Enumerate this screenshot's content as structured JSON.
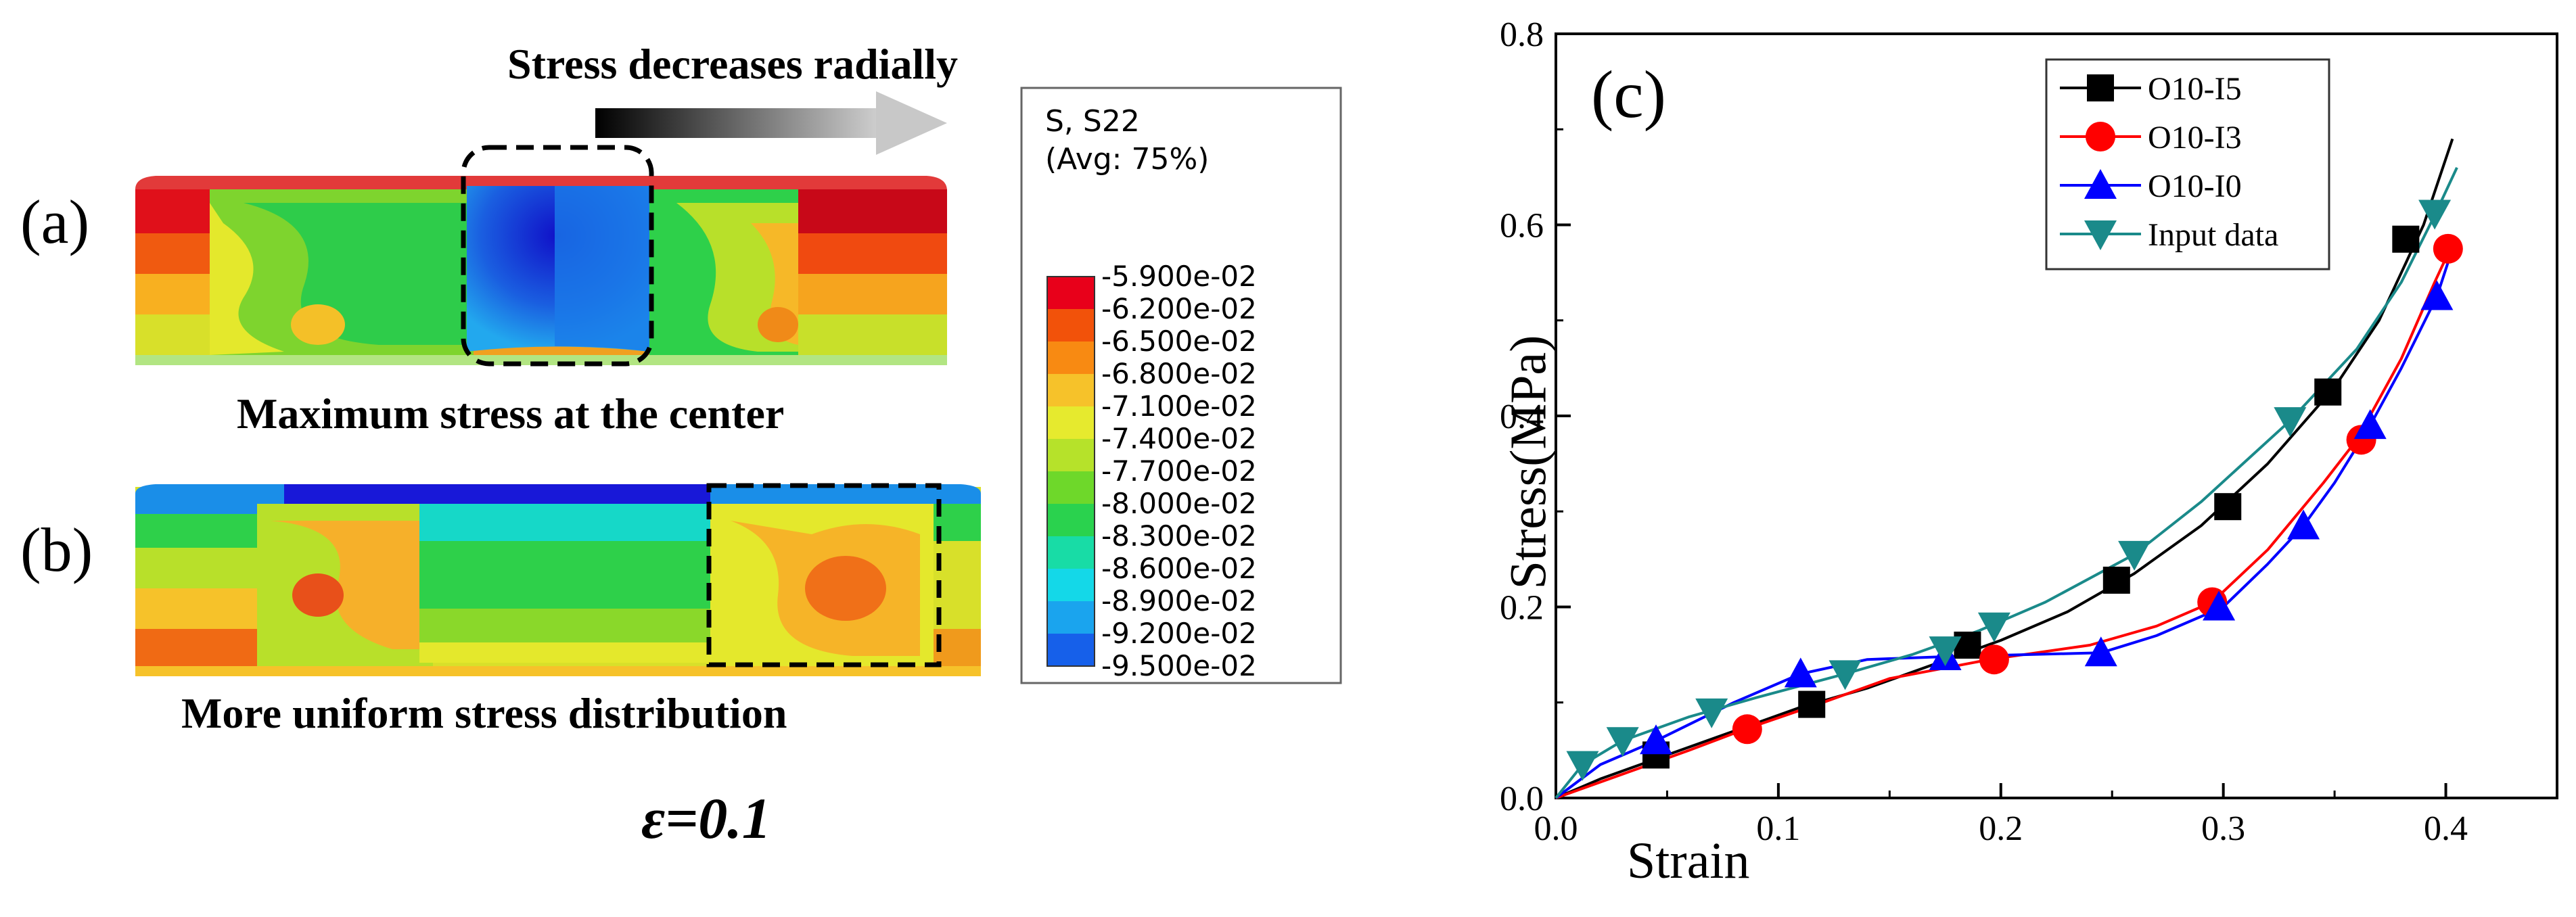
{
  "panel_a": {
    "label": "(a)",
    "arrow_caption": "Stress decreases radially",
    "caption": "Maximum stress at the center"
  },
  "panel_b": {
    "label": "(b)",
    "caption": "More uniform stress distribution"
  },
  "strain_note": "ε=0.1",
  "legend": {
    "title_line1": "S, S22",
    "title_line2": "(Avg: 75%)",
    "entries": [
      {
        "label": "-5.900e-02",
        "color": "#e8001a"
      },
      {
        "label": "-6.200e-02",
        "color": "#f2520a"
      },
      {
        "label": "-6.500e-02",
        "color": "#f88a12"
      },
      {
        "label": "-6.800e-02",
        "color": "#f6c22a"
      },
      {
        "label": "-7.100e-02",
        "color": "#e6ea2e"
      },
      {
        "label": "-7.400e-02",
        "color": "#b6e22a"
      },
      {
        "label": "-7.700e-02",
        "color": "#6ed82a"
      },
      {
        "label": "-8.000e-02",
        "color": "#2ad24e"
      },
      {
        "label": "-8.300e-02",
        "color": "#18dca6"
      },
      {
        "label": "-8.600e-02",
        "color": "#14d8e8"
      },
      {
        "label": "-8.900e-02",
        "color": "#1aa4ee"
      },
      {
        "label": "-9.200e-02",
        "color": "#1660ea"
      },
      {
        "label": "-9.500e-02",
        "color": "#1818d8"
      }
    ]
  },
  "chart_data": {
    "type": "line",
    "panel_label": "(c)",
    "xlabel": "Strain",
    "ylabel": "Stress(MPa)",
    "xlim": [
      0.0,
      0.45
    ],
    "ylim": [
      0.0,
      0.8
    ],
    "xticks": [
      "0.0",
      "0.1",
      "0.2",
      "0.3",
      "0.4"
    ],
    "yticks": [
      "0.0",
      "0.2",
      "0.4",
      "0.6",
      "0.8"
    ],
    "legend_position": "top-right",
    "series": [
      {
        "name": "O10-I5",
        "color": "#000000",
        "marker": "square",
        "curve": [
          [
            0,
            0
          ],
          [
            0.02,
            0.02
          ],
          [
            0.05,
            0.045
          ],
          [
            0.08,
            0.07
          ],
          [
            0.11,
            0.095
          ],
          [
            0.14,
            0.115
          ],
          [
            0.17,
            0.14
          ],
          [
            0.2,
            0.165
          ],
          [
            0.23,
            0.195
          ],
          [
            0.26,
            0.235
          ],
          [
            0.29,
            0.285
          ],
          [
            0.32,
            0.35
          ],
          [
            0.35,
            0.43
          ],
          [
            0.37,
            0.5
          ],
          [
            0.39,
            0.6
          ],
          [
            0.403,
            0.69
          ]
        ],
        "markers": [
          [
            0.045,
            0.045
          ],
          [
            0.115,
            0.098
          ],
          [
            0.185,
            0.16
          ],
          [
            0.252,
            0.228
          ],
          [
            0.302,
            0.305
          ],
          [
            0.347,
            0.425
          ],
          [
            0.382,
            0.585
          ]
        ]
      },
      {
        "name": "O10-I3",
        "color": "#ff0000",
        "marker": "circle",
        "curve": [
          [
            0,
            0
          ],
          [
            0.03,
            0.025
          ],
          [
            0.06,
            0.05
          ],
          [
            0.085,
            0.072
          ],
          [
            0.12,
            0.1
          ],
          [
            0.15,
            0.125
          ],
          [
            0.195,
            0.145
          ],
          [
            0.24,
            0.16
          ],
          [
            0.27,
            0.18
          ],
          [
            0.295,
            0.205
          ],
          [
            0.32,
            0.26
          ],
          [
            0.345,
            0.33
          ],
          [
            0.36,
            0.375
          ],
          [
            0.38,
            0.46
          ],
          [
            0.395,
            0.54
          ],
          [
            0.402,
            0.575
          ]
        ],
        "markers": [
          [
            0.086,
            0.072
          ],
          [
            0.197,
            0.145
          ],
          [
            0.295,
            0.205
          ],
          [
            0.362,
            0.375
          ],
          [
            0.401,
            0.575
          ]
        ]
      },
      {
        "name": "O10-I0",
        "color": "#0000ff",
        "marker": "triangle-up",
        "curve": [
          [
            0,
            0
          ],
          [
            0.02,
            0.035
          ],
          [
            0.045,
            0.06
          ],
          [
            0.08,
            0.1
          ],
          [
            0.11,
            0.13
          ],
          [
            0.14,
            0.145
          ],
          [
            0.175,
            0.148
          ],
          [
            0.21,
            0.15
          ],
          [
            0.245,
            0.152
          ],
          [
            0.27,
            0.17
          ],
          [
            0.3,
            0.2
          ],
          [
            0.32,
            0.245
          ],
          [
            0.336,
            0.285
          ],
          [
            0.35,
            0.33
          ],
          [
            0.366,
            0.39
          ],
          [
            0.38,
            0.45
          ],
          [
            0.396,
            0.525
          ],
          [
            0.403,
            0.575
          ]
        ],
        "markers": [
          [
            0.045,
            0.06
          ],
          [
            0.11,
            0.13
          ],
          [
            0.175,
            0.148
          ],
          [
            0.245,
            0.152
          ],
          [
            0.298,
            0.2
          ],
          [
            0.336,
            0.285
          ],
          [
            0.366,
            0.39
          ],
          [
            0.396,
            0.525
          ]
        ]
      },
      {
        "name": "Input data",
        "color": "#1a8a8a",
        "marker": "triangle-down",
        "curve": [
          [
            0,
            0
          ],
          [
            0.012,
            0.035
          ],
          [
            0.03,
            0.06
          ],
          [
            0.06,
            0.085
          ],
          [
            0.09,
            0.105
          ],
          [
            0.13,
            0.13
          ],
          [
            0.16,
            0.15
          ],
          [
            0.19,
            0.175
          ],
          [
            0.22,
            0.205
          ],
          [
            0.26,
            0.255
          ],
          [
            0.29,
            0.31
          ],
          [
            0.33,
            0.395
          ],
          [
            0.36,
            0.47
          ],
          [
            0.38,
            0.54
          ],
          [
            0.395,
            0.61
          ],
          [
            0.405,
            0.66
          ]
        ],
        "markers": [
          [
            0.012,
            0.035
          ],
          [
            0.03,
            0.06
          ],
          [
            0.07,
            0.09
          ],
          [
            0.13,
            0.13
          ],
          [
            0.175,
            0.155
          ],
          [
            0.197,
            0.18
          ],
          [
            0.26,
            0.255
          ],
          [
            0.33,
            0.395
          ],
          [
            0.395,
            0.612
          ]
        ]
      }
    ]
  }
}
